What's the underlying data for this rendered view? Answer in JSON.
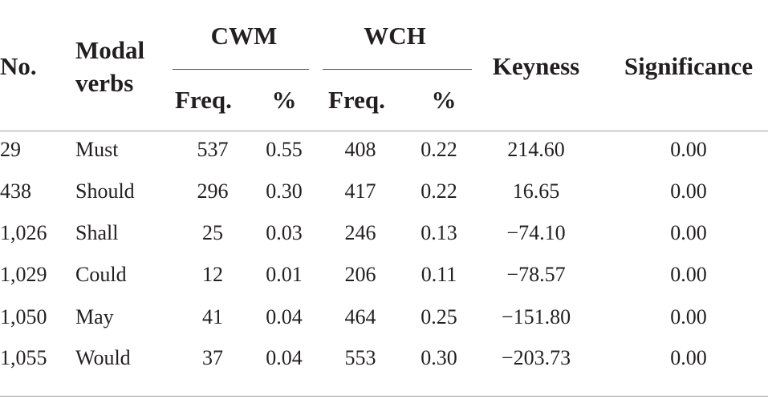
{
  "table": {
    "headers": {
      "no": "No.",
      "modal_line1": "Modal",
      "modal_line2": "verbs",
      "cwm": "CWM",
      "wch": "WCH",
      "keyness": "Keyness",
      "significance": "Significance",
      "freq": "Freq.",
      "pct": "%"
    },
    "rows": [
      {
        "no": "29",
        "verb": "Must",
        "cwm_freq": "537",
        "cwm_pct": "0.55",
        "wch_freq": "408",
        "wch_pct": "0.22",
        "keyness": "214.60",
        "significance": "0.00"
      },
      {
        "no": "438",
        "verb": "Should",
        "cwm_freq": "296",
        "cwm_pct": "0.30",
        "wch_freq": "417",
        "wch_pct": "0.22",
        "keyness": "16.65",
        "significance": "0.00"
      },
      {
        "no": "1,026",
        "verb": "Shall",
        "cwm_freq": "25",
        "cwm_pct": "0.03",
        "wch_freq": "246",
        "wch_pct": "0.13",
        "keyness": "−74.10",
        "significance": "0.00"
      },
      {
        "no": "1,029",
        "verb": "Could",
        "cwm_freq": "12",
        "cwm_pct": "0.01",
        "wch_freq": "206",
        "wch_pct": "0.11",
        "keyness": "−78.57",
        "significance": "0.00"
      },
      {
        "no": "1,050",
        "verb": "May",
        "cwm_freq": "41",
        "cwm_pct": "0.04",
        "wch_freq": "464",
        "wch_pct": "0.25",
        "keyness": "−151.80",
        "significance": "0.00"
      },
      {
        "no": "1,055",
        "verb": "Would",
        "cwm_freq": "37",
        "cwm_pct": "0.04",
        "wch_freq": "553",
        "wch_pct": "0.30",
        "keyness": "−203.73",
        "significance": "0.00"
      }
    ]
  }
}
